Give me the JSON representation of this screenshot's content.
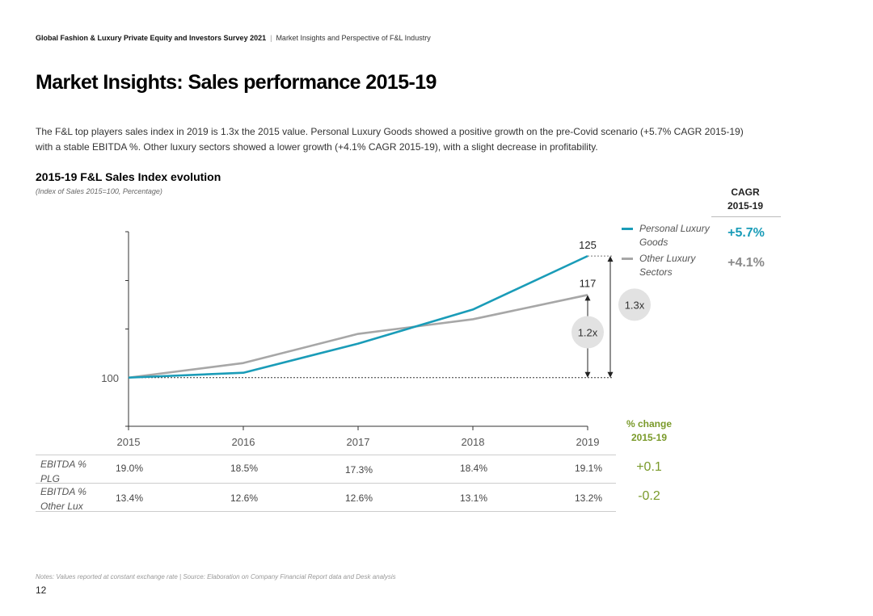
{
  "header": {
    "survey": "Global Fashion & Luxury Private Equity and Investors Survey 2021",
    "separator": "|",
    "subtitle": "Market Insights and Perspective of F&L Industry"
  },
  "page_title": "Market Insights: Sales performance 2015-19",
  "description": "The F&L top players sales index in 2019 is 1.3x the 2015 value. Personal Luxury Goods showed a positive growth on the pre-Covid scenario (+5.7% CAGR 2015-19) with a stable EBITDA %. Other luxury sectors showed a lower growth (+4.1% CAGR 2015-19), with a slight decrease in profitability.",
  "cagr": {
    "header_line1": "CAGR",
    "header_line2": "2015-19",
    "plg": "+5.7%",
    "other": "+4.1%"
  },
  "legend": {
    "plg": "Personal Luxury Goods",
    "other": "Other Luxury Sectors"
  },
  "pct_change": {
    "header_line1": "% change",
    "header_line2": "2015-19"
  },
  "ebitda_table": {
    "rows": [
      {
        "label": "EBITDA % PLG",
        "values": [
          "19.0%",
          "18.5%",
          "17.3%",
          "18.4%",
          "19.1%"
        ],
        "change": "+0.1"
      },
      {
        "label": "EBITDA % Other Lux",
        "values": [
          "13.4%",
          "12.6%",
          "12.6%",
          "13.1%",
          "13.2%"
        ],
        "change": "-0.2"
      }
    ]
  },
  "chart_data": {
    "type": "line",
    "title": "2015-19 F&L Sales Index evolution",
    "subtitle": "(Index of Sales 2015=100, Percentage)",
    "categories": [
      "2015",
      "2016",
      "2017",
      "2018",
      "2019"
    ],
    "series": [
      {
        "name": "Personal Luxury Goods",
        "color": "#1a9cb8",
        "values": [
          100,
          101,
          107,
          114,
          125
        ]
      },
      {
        "name": "Other Luxury Sectors",
        "color": "#a7a7a7",
        "values": [
          100,
          103,
          109,
          112,
          117
        ]
      }
    ],
    "ylim": [
      90,
      130
    ],
    "baseline_label": "100",
    "end_labels": [
      "125",
      "117"
    ],
    "multipliers": [
      "1.3x",
      "1.2x"
    ]
  },
  "notes": "Notes: Values reported at constant exchange rate | Source: Elaboration on Company Financial Report data and Desk analysis",
  "page_number": "12"
}
